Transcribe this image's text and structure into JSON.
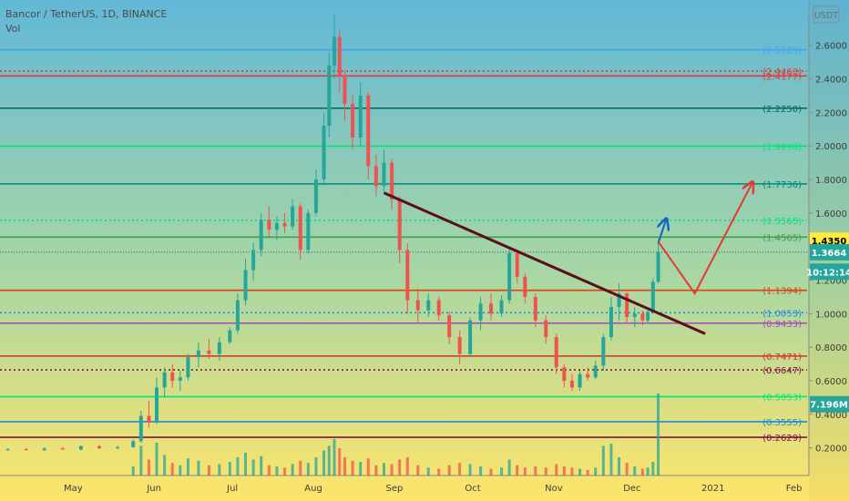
{
  "header": {
    "symbol_line": "Bancor / TetherUS, 1D, BINANCE",
    "volume_label": "Vol",
    "currency_badge": "USDT"
  },
  "colors": {
    "up": "#26a69a",
    "down": "#ef5350",
    "trendline": "#5b0f1e",
    "blue_arrow": "#1565c0",
    "red_arrow": "#e53935",
    "bg_top": "#62b8d7",
    "bg_bottom": "#ffe56a"
  },
  "chart_data": {
    "type": "candlestick",
    "title": "Bancor / TetherUS, 1D, BINANCE",
    "x_start": "2020-04-03",
    "x_end": "2021-02-06",
    "x_ticks": [
      {
        "date": "2020-05-01",
        "label": "May"
      },
      {
        "date": "2020-06-01",
        "label": "Jun"
      },
      {
        "date": "2020-07-01",
        "label": "Jul"
      },
      {
        "date": "2020-08-01",
        "label": "Aug"
      },
      {
        "date": "2020-09-01",
        "label": "Sep"
      },
      {
        "date": "2020-10-01",
        "label": "Oct"
      },
      {
        "date": "2020-11-01",
        "label": "Nov"
      },
      {
        "date": "2020-12-01",
        "label": "Dec"
      },
      {
        "date": "2021-01-01",
        "label": "2021"
      },
      {
        "date": "2021-02-01",
        "label": "Feb"
      }
    ],
    "ylim": [
      0.035,
      2.87
    ],
    "y_ticks": [
      "0.2000",
      "0.4000",
      "0.6000",
      "0.8000",
      "1.0000",
      "1.2000",
      "1.4000",
      "1.6000",
      "1.8000",
      "2.0000",
      "2.2000",
      "2.4000",
      "2.6000"
    ],
    "levels": [
      {
        "label": "(2.5729)",
        "value": 2.5729,
        "color": "#42a5f5",
        "style": "solid"
      },
      {
        "label": "(2.4463)",
        "value": 2.4463,
        "color": "#e53935",
        "style": "dotted"
      },
      {
        "label": "(2.4177)",
        "value": 2.4177,
        "color": "#e53935",
        "style": "solid"
      },
      {
        "label": "(2.2250)",
        "value": 2.225,
        "color": "#00695c",
        "style": "solid"
      },
      {
        "label": "(1.9990)",
        "value": 1.999,
        "color": "#00e676",
        "style": "solid"
      },
      {
        "label": "(1.7736)",
        "value": 1.7736,
        "color": "#00897b",
        "style": "solid"
      },
      {
        "label": "(1.5565)",
        "value": 1.5565,
        "color": "#00e676",
        "style": "dotted"
      },
      {
        "label": "(1.4565)",
        "value": 1.4565,
        "color": "#43a047",
        "style": "solid"
      },
      {
        "label": "(1.1394)",
        "value": 1.1394,
        "color": "#d84315",
        "style": "solid"
      },
      {
        "label": "(1.0053)",
        "value": 1.0053,
        "color": "#1e88e5",
        "style": "dotted"
      },
      {
        "label": "(0.9433)",
        "value": 0.9433,
        "color": "#ab47bc",
        "style": "solid"
      },
      {
        "label": "(0.7471)",
        "value": 0.7471,
        "color": "#d32f2f",
        "style": "solid"
      },
      {
        "label": "(0.6647)",
        "value": 0.6647,
        "color": "#880e4f",
        "style": "dotted"
      },
      {
        "label": "(0.5053)",
        "value": 0.5053,
        "color": "#00e676",
        "style": "solid"
      },
      {
        "label": "(0.3555)",
        "value": 0.3555,
        "color": "#1e88e5",
        "style": "solid"
      },
      {
        "label": "(0.2629)",
        "value": 0.2629,
        "color": "#880e4f",
        "style": "solid"
      }
    ],
    "price_badges": [
      {
        "label": "1.4350",
        "value": 1.435,
        "color": "#ffeb3b",
        "text_color": "#000000"
      },
      {
        "label": "1.3664",
        "value": 1.3664,
        "color": "#26a69a",
        "text_color": "#ffffff"
      },
      {
        "label": "10:12:14",
        "value": 1.25,
        "color": "#26a69a",
        "text_color": "#ffffff"
      },
      {
        "label": "7.196M",
        "value": 0.46,
        "color": "#26a69a",
        "text_color": "#ffffff"
      }
    ],
    "trendline": [
      {
        "date": "2020-08-28",
        "value": 1.72
      },
      {
        "date": "2020-12-29",
        "value": 0.88
      }
    ],
    "projection_blue": [
      {
        "date": "2020-12-11",
        "value": 1.42
      },
      {
        "date": "2020-12-14",
        "value": 1.56
      }
    ],
    "projection_red": [
      {
        "date": "2020-12-11",
        "value": 1.43
      },
      {
        "date": "2020-12-25",
        "value": 1.12
      },
      {
        "date": "2021-01-16",
        "value": 1.78
      }
    ],
    "series": [
      {
        "type": "candles",
        "ohlc": [
          [
            "2020-04-06",
            0.19,
            0.198,
            0.182,
            0.192
          ],
          [
            "2020-04-13",
            0.192,
            0.2,
            0.184,
            0.186
          ],
          [
            "2020-04-20",
            0.186,
            0.202,
            0.18,
            0.196
          ],
          [
            "2020-04-27",
            0.196,
            0.206,
            0.188,
            0.19
          ],
          [
            "2020-05-04",
            0.19,
            0.214,
            0.184,
            0.21
          ],
          [
            "2020-05-11",
            0.21,
            0.216,
            0.192,
            0.198
          ],
          [
            "2020-05-18",
            0.198,
            0.212,
            0.19,
            0.204
          ],
          [
            "2020-05-24",
            0.204,
            0.25,
            0.2,
            0.24
          ],
          [
            "2020-05-27",
            0.24,
            0.42,
            0.23,
            0.39
          ],
          [
            "2020-05-30",
            0.39,
            0.48,
            0.32,
            0.35
          ],
          [
            "2020-06-02",
            0.35,
            0.62,
            0.34,
            0.56
          ],
          [
            "2020-06-05",
            0.56,
            0.68,
            0.5,
            0.65
          ],
          [
            "2020-06-08",
            0.65,
            0.7,
            0.56,
            0.6
          ],
          [
            "2020-06-11",
            0.6,
            0.66,
            0.54,
            0.62
          ],
          [
            "2020-06-14",
            0.62,
            0.76,
            0.6,
            0.74
          ],
          [
            "2020-06-18",
            0.74,
            0.83,
            0.68,
            0.78
          ],
          [
            "2020-06-22",
            0.78,
            0.85,
            0.73,
            0.76
          ],
          [
            "2020-06-26",
            0.76,
            0.86,
            0.72,
            0.83
          ],
          [
            "2020-06-30",
            0.83,
            0.92,
            0.82,
            0.9
          ],
          [
            "2020-07-03",
            0.9,
            1.12,
            0.88,
            1.08
          ],
          [
            "2020-07-06",
            1.08,
            1.33,
            1.05,
            1.26
          ],
          [
            "2020-07-09",
            1.26,
            1.42,
            1.2,
            1.38
          ],
          [
            "2020-07-12",
            1.38,
            1.6,
            1.34,
            1.56
          ],
          [
            "2020-07-15",
            1.56,
            1.64,
            1.46,
            1.5
          ],
          [
            "2020-07-18",
            1.5,
            1.58,
            1.44,
            1.54
          ],
          [
            "2020-07-21",
            1.54,
            1.6,
            1.48,
            1.52
          ],
          [
            "2020-07-24",
            1.52,
            1.68,
            1.5,
            1.64
          ],
          [
            "2020-07-27",
            1.64,
            1.66,
            1.32,
            1.38
          ],
          [
            "2020-07-30",
            1.38,
            1.62,
            1.36,
            1.6
          ],
          [
            "2020-08-02",
            1.6,
            1.86,
            1.58,
            1.8
          ],
          [
            "2020-08-05",
            1.8,
            2.2,
            1.78,
            2.12
          ],
          [
            "2020-08-07",
            2.12,
            2.56,
            2.05,
            2.48
          ],
          [
            "2020-08-09",
            2.48,
            2.78,
            2.4,
            2.65
          ],
          [
            "2020-08-11",
            2.65,
            2.69,
            2.32,
            2.42
          ],
          [
            "2020-08-13",
            2.42,
            2.45,
            2.15,
            2.25
          ],
          [
            "2020-08-16",
            2.25,
            2.3,
            1.98,
            2.05
          ],
          [
            "2020-08-19",
            2.05,
            2.38,
            2.0,
            2.3
          ],
          [
            "2020-08-22",
            2.3,
            2.32,
            1.8,
            1.88
          ],
          [
            "2020-08-25",
            1.88,
            1.95,
            1.7,
            1.76
          ],
          [
            "2020-08-28",
            1.76,
            1.98,
            1.72,
            1.9
          ],
          [
            "2020-08-31",
            1.9,
            1.92,
            1.62,
            1.68
          ],
          [
            "2020-09-03",
            1.68,
            1.7,
            1.3,
            1.38
          ],
          [
            "2020-09-06",
            1.38,
            1.42,
            1.0,
            1.08
          ],
          [
            "2020-09-10",
            1.08,
            1.15,
            0.95,
            1.02
          ],
          [
            "2020-09-14",
            1.02,
            1.12,
            0.98,
            1.08
          ],
          [
            "2020-09-18",
            1.08,
            1.1,
            0.96,
            0.99
          ],
          [
            "2020-09-22",
            0.99,
            1.01,
            0.82,
            0.86
          ],
          [
            "2020-09-26",
            0.86,
            0.9,
            0.7,
            0.76
          ],
          [
            "2020-09-30",
            0.76,
            0.98,
            0.74,
            0.96
          ],
          [
            "2020-10-04",
            0.96,
            1.1,
            0.9,
            1.06
          ],
          [
            "2020-10-08",
            1.06,
            1.12,
            0.96,
            1.0
          ],
          [
            "2020-10-12",
            1.0,
            1.11,
            0.98,
            1.08
          ],
          [
            "2020-10-15",
            1.08,
            1.4,
            1.06,
            1.36
          ],
          [
            "2020-10-18",
            1.36,
            1.38,
            1.18,
            1.22
          ],
          [
            "2020-10-21",
            1.22,
            1.24,
            1.06,
            1.1
          ],
          [
            "2020-10-25",
            1.1,
            1.12,
            0.92,
            0.96
          ],
          [
            "2020-10-29",
            0.96,
            0.99,
            0.82,
            0.86
          ],
          [
            "2020-11-02",
            0.86,
            0.88,
            0.64,
            0.68
          ],
          [
            "2020-11-05",
            0.68,
            0.7,
            0.56,
            0.6
          ],
          [
            "2020-11-08",
            0.6,
            0.64,
            0.54,
            0.56
          ],
          [
            "2020-11-11",
            0.56,
            0.66,
            0.54,
            0.64
          ],
          [
            "2020-11-14",
            0.64,
            0.68,
            0.6,
            0.62
          ],
          [
            "2020-11-17",
            0.62,
            0.72,
            0.61,
            0.69
          ],
          [
            "2020-11-20",
            0.69,
            0.88,
            0.66,
            0.86
          ],
          [
            "2020-11-23",
            0.86,
            1.1,
            0.84,
            1.04
          ],
          [
            "2020-11-26",
            1.04,
            1.18,
            0.96,
            1.12
          ],
          [
            "2020-11-29",
            1.12,
            1.13,
            0.94,
            0.98
          ],
          [
            "2020-12-02",
            0.98,
            1.04,
            0.92,
            1.0
          ],
          [
            "2020-12-05",
            1.0,
            1.02,
            0.93,
            0.96
          ],
          [
            "2020-12-07",
            0.96,
            1.04,
            0.94,
            1.01
          ],
          [
            "2020-12-09",
            1.01,
            1.21,
            1.0,
            1.19
          ],
          [
            "2020-12-11",
            1.19,
            1.44,
            1.18,
            1.366
          ]
        ]
      },
      {
        "type": "volume",
        "max": 7.196,
        "bars": [
          [
            "2020-05-24",
            0.8,
            "up"
          ],
          [
            "2020-05-27",
            2.6,
            "up"
          ],
          [
            "2020-05-30",
            1.4,
            "down"
          ],
          [
            "2020-06-02",
            2.9,
            "up"
          ],
          [
            "2020-06-05",
            1.8,
            "up"
          ],
          [
            "2020-06-08",
            1.1,
            "down"
          ],
          [
            "2020-06-11",
            0.9,
            "up"
          ],
          [
            "2020-06-14",
            1.5,
            "up"
          ],
          [
            "2020-06-18",
            1.3,
            "up"
          ],
          [
            "2020-06-22",
            0.9,
            "down"
          ],
          [
            "2020-06-26",
            1.0,
            "up"
          ],
          [
            "2020-06-30",
            1.2,
            "up"
          ],
          [
            "2020-07-03",
            1.6,
            "up"
          ],
          [
            "2020-07-06",
            2.0,
            "up"
          ],
          [
            "2020-07-09",
            1.4,
            "up"
          ],
          [
            "2020-07-12",
            1.7,
            "up"
          ],
          [
            "2020-07-15",
            0.9,
            "down"
          ],
          [
            "2020-07-18",
            0.8,
            "up"
          ],
          [
            "2020-07-21",
            0.7,
            "down"
          ],
          [
            "2020-07-24",
            1.0,
            "up"
          ],
          [
            "2020-07-27",
            1.3,
            "down"
          ],
          [
            "2020-07-30",
            1.1,
            "up"
          ],
          [
            "2020-08-02",
            1.6,
            "up"
          ],
          [
            "2020-08-05",
            2.2,
            "up"
          ],
          [
            "2020-08-07",
            2.6,
            "up"
          ],
          [
            "2020-08-09",
            3.2,
            "up"
          ],
          [
            "2020-08-11",
            2.4,
            "down"
          ],
          [
            "2020-08-13",
            1.6,
            "down"
          ],
          [
            "2020-08-16",
            1.3,
            "down"
          ],
          [
            "2020-08-19",
            1.2,
            "up"
          ],
          [
            "2020-08-22",
            1.5,
            "down"
          ],
          [
            "2020-08-25",
            0.9,
            "down"
          ],
          [
            "2020-08-28",
            1.1,
            "up"
          ],
          [
            "2020-08-31",
            1.0,
            "down"
          ],
          [
            "2020-09-03",
            1.4,
            "down"
          ],
          [
            "2020-09-06",
            1.6,
            "down"
          ],
          [
            "2020-09-10",
            0.9,
            "down"
          ],
          [
            "2020-09-14",
            0.7,
            "up"
          ],
          [
            "2020-09-18",
            0.6,
            "down"
          ],
          [
            "2020-09-22",
            0.9,
            "down"
          ],
          [
            "2020-09-26",
            1.1,
            "down"
          ],
          [
            "2020-09-30",
            1.0,
            "up"
          ],
          [
            "2020-10-04",
            0.8,
            "up"
          ],
          [
            "2020-10-08",
            0.6,
            "down"
          ],
          [
            "2020-10-12",
            0.7,
            "up"
          ],
          [
            "2020-10-15",
            1.4,
            "up"
          ],
          [
            "2020-10-18",
            0.9,
            "down"
          ],
          [
            "2020-10-21",
            0.7,
            "down"
          ],
          [
            "2020-10-25",
            0.8,
            "down"
          ],
          [
            "2020-10-29",
            0.7,
            "down"
          ],
          [
            "2020-11-02",
            1.0,
            "down"
          ],
          [
            "2020-11-05",
            0.8,
            "down"
          ],
          [
            "2020-11-08",
            0.7,
            "down"
          ],
          [
            "2020-11-11",
            0.6,
            "up"
          ],
          [
            "2020-11-14",
            0.5,
            "down"
          ],
          [
            "2020-11-17",
            0.7,
            "up"
          ],
          [
            "2020-11-20",
            2.6,
            "up"
          ],
          [
            "2020-11-23",
            2.8,
            "up"
          ],
          [
            "2020-11-26",
            1.6,
            "up"
          ],
          [
            "2020-11-29",
            1.1,
            "down"
          ],
          [
            "2020-12-02",
            0.8,
            "up"
          ],
          [
            "2020-12-05",
            0.6,
            "down"
          ],
          [
            "2020-12-07",
            0.7,
            "up"
          ],
          [
            "2020-12-09",
            1.2,
            "up"
          ],
          [
            "2020-12-11",
            7.196,
            "up"
          ]
        ]
      }
    ]
  }
}
